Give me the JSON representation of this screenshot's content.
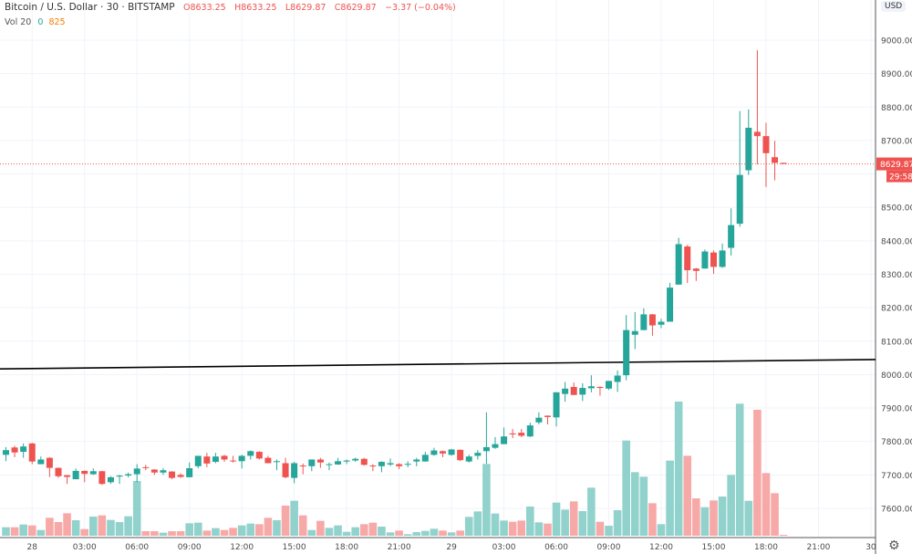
{
  "header": {
    "symbol": "Bitcoin / U.S. Dollar · 30 · BITSTAMP",
    "open": "O8633.25",
    "high": "H8633.25",
    "low": "L8629.87",
    "close": "C8629.87",
    "change": "−3.37 (−0.04%)"
  },
  "volume_legend": {
    "label": "Vol 20",
    "value_a": "0",
    "value_b": "825"
  },
  "currency": "USD",
  "settings_icon": "gear-icon",
  "colors": {
    "up": "#26a69a",
    "down": "#ef5350",
    "up_volume": "#92d2cc",
    "down_volume": "#f7a9a7",
    "trendline": "#000000"
  },
  "chart_data": {
    "type": "candlestick",
    "interval": "30",
    "ylim": [
      7500,
      9100
    ],
    "grid": true,
    "price_ticks": [
      "9000.00",
      "8900.00",
      "8800.00",
      "8700.00",
      "8500.00",
      "8400.00",
      "8300.00",
      "8200.00",
      "8100.00",
      "8000.00",
      "7900.00",
      "7800.00",
      "7700.00",
      "7600.00"
    ],
    "time_ticks": [
      "28",
      "03:00",
      "06:00",
      "09:00",
      "12:00",
      "15:00",
      "18:00",
      "21:00",
      "29",
      "03:00",
      "06:00",
      "09:00",
      "12:00",
      "15:00",
      "18:00",
      "21:00",
      "30"
    ],
    "last_price": "8629.87",
    "countdown": "29:58",
    "trendline": {
      "start_price": 8017,
      "end_price": 8045
    },
    "ohlc": [
      [
        7760,
        7783,
        7741,
        7774
      ],
      [
        7782,
        7787,
        7753,
        7767
      ],
      [
        7769,
        7794,
        7751,
        7785
      ],
      [
        7794,
        7796,
        7732,
        7740
      ],
      [
        7732,
        7755,
        7732,
        7746
      ],
      [
        7751,
        7753,
        7694,
        7721
      ],
      [
        7721,
        7722,
        7691,
        7696
      ],
      [
        7699,
        7700,
        7673,
        7694
      ],
      [
        7687,
        7719,
        7687,
        7712
      ],
      [
        7712,
        7713,
        7678,
        7703
      ],
      [
        7702,
        7719,
        7700,
        7711
      ],
      [
        7711,
        7712,
        7670,
        7673
      ],
      [
        7678,
        7696,
        7673,
        7693
      ],
      [
        7695,
        7700,
        7673,
        7698
      ],
      [
        7698,
        7707,
        7693,
        7702
      ],
      [
        7702,
        7732,
        7678,
        7719
      ],
      [
        7723,
        7730,
        7714,
        7721
      ],
      [
        7716,
        7717,
        7700,
        7707
      ],
      [
        7707,
        7720,
        7700,
        7714
      ],
      [
        7710,
        7711,
        7687,
        7691
      ],
      [
        7700,
        7705,
        7691,
        7694
      ],
      [
        7693,
        7737,
        7693,
        7720
      ],
      [
        7726,
        7757,
        7720,
        7757
      ],
      [
        7755,
        7766,
        7723,
        7734
      ],
      [
        7739,
        7766,
        7735,
        7755
      ],
      [
        7757,
        7760,
        7739,
        7746
      ],
      [
        7743,
        7757,
        7737,
        7741
      ],
      [
        7741,
        7760,
        7719,
        7757
      ],
      [
        7757,
        7773,
        7746,
        7771
      ],
      [
        7769,
        7771,
        7746,
        7749
      ],
      [
        7751,
        7757,
        7735,
        7735
      ],
      [
        7740,
        7746,
        7714,
        7741
      ],
      [
        7735,
        7751,
        7690,
        7693
      ],
      [
        7691,
        7739,
        7675,
        7735
      ],
      [
        7728,
        7734,
        7702,
        7726
      ],
      [
        7726,
        7746,
        7711,
        7746
      ],
      [
        7746,
        7751,
        7721,
        7737
      ],
      [
        7731,
        7737,
        7714,
        7732
      ],
      [
        7731,
        7751,
        7730,
        7741
      ],
      [
        7740,
        7746,
        7732,
        7743
      ],
      [
        7743,
        7752,
        7739,
        7748
      ],
      [
        7748,
        7751,
        7728,
        7730
      ],
      [
        7728,
        7732,
        7711,
        7726
      ],
      [
        7726,
        7741,
        7708,
        7739
      ],
      [
        7731,
        7749,
        7726,
        7735
      ],
      [
        7732,
        7735,
        7717,
        7726
      ],
      [
        7731,
        7741,
        7723,
        7733
      ],
      [
        7740,
        7751,
        7726,
        7746
      ],
      [
        7740,
        7769,
        7740,
        7760
      ],
      [
        7760,
        7781,
        7757,
        7773
      ],
      [
        7771,
        7773,
        7753,
        7764
      ],
      [
        7760,
        7778,
        7757,
        7776
      ],
      [
        7775,
        7776,
        7741,
        7744
      ],
      [
        7740,
        7760,
        7737,
        7755
      ],
      [
        7757,
        7774,
        7746,
        7766
      ],
      [
        7771,
        7887,
        7733,
        7783
      ],
      [
        7781,
        7813,
        7778,
        7792
      ],
      [
        7792,
        7842,
        7792,
        7815
      ],
      [
        7824,
        7837,
        7810,
        7821
      ],
      [
        7826,
        7837,
        7813,
        7817
      ],
      [
        7815,
        7856,
        7813,
        7848
      ],
      [
        7857,
        7887,
        7851,
        7871
      ],
      [
        7877,
        7878,
        7851,
        7873
      ],
      [
        7872,
        7947,
        7845,
        7947
      ],
      [
        7942,
        7978,
        7919,
        7958
      ],
      [
        7963,
        7976,
        7939,
        7939
      ],
      [
        7940,
        7974,
        7921,
        7960
      ],
      [
        7959,
        7998,
        7947,
        7965
      ],
      [
        7963,
        7965,
        7937,
        7960
      ],
      [
        7958,
        7981,
        7954,
        7981
      ],
      [
        7978,
        8012,
        7948,
        7997
      ],
      [
        7998,
        8178,
        7983,
        8133
      ],
      [
        8119,
        8187,
        8076,
        8130
      ],
      [
        8133,
        8198,
        8133,
        8180
      ],
      [
        8180,
        8181,
        8116,
        8147
      ],
      [
        8149,
        8167,
        8139,
        8158
      ],
      [
        8158,
        8274,
        8158,
        8260
      ],
      [
        8269,
        8409,
        8269,
        8390
      ],
      [
        8383,
        8388,
        8274,
        8312
      ],
      [
        8317,
        8319,
        8280,
        8310
      ],
      [
        8317,
        8374,
        8317,
        8368
      ],
      [
        8365,
        8371,
        8301,
        8322
      ],
      [
        8322,
        8392,
        8319,
        8371
      ],
      [
        8379,
        8497,
        8356,
        8447
      ],
      [
        8451,
        8788,
        8442,
        8597
      ],
      [
        8611,
        8793,
        8597,
        8738
      ],
      [
        8726,
        8970,
        8629,
        8713
      ],
      [
        8713,
        8753,
        8561,
        8662
      ],
      [
        8650,
        8699,
        8581,
        8633
      ],
      [
        8633.25,
        8633.25,
        8629.87,
        8629.87
      ]
    ],
    "volume": [
      28,
      28,
      37,
      34,
      19,
      59,
      45,
      74,
      51,
      22,
      63,
      67,
      52,
      45,
      64,
      180,
      15,
      15,
      10,
      15,
      15,
      41,
      43,
      17,
      25,
      19,
      26,
      34,
      40,
      38,
      59,
      51,
      99,
      115,
      67,
      19,
      49,
      26,
      34,
      13,
      28,
      38,
      43,
      30,
      11,
      17,
      5,
      12,
      16,
      23,
      17,
      11,
      17,
      62,
      80,
      236,
      73,
      50,
      46,
      50,
      96,
      44,
      40,
      109,
      86,
      113,
      81,
      158,
      46,
      33,
      84,
      313,
      209,
      194,
      107,
      38,
      247,
      441,
      263,
      123,
      94,
      116,
      129,
      200,
      434,
      115,
      414,
      206,
      140,
      2
    ]
  }
}
